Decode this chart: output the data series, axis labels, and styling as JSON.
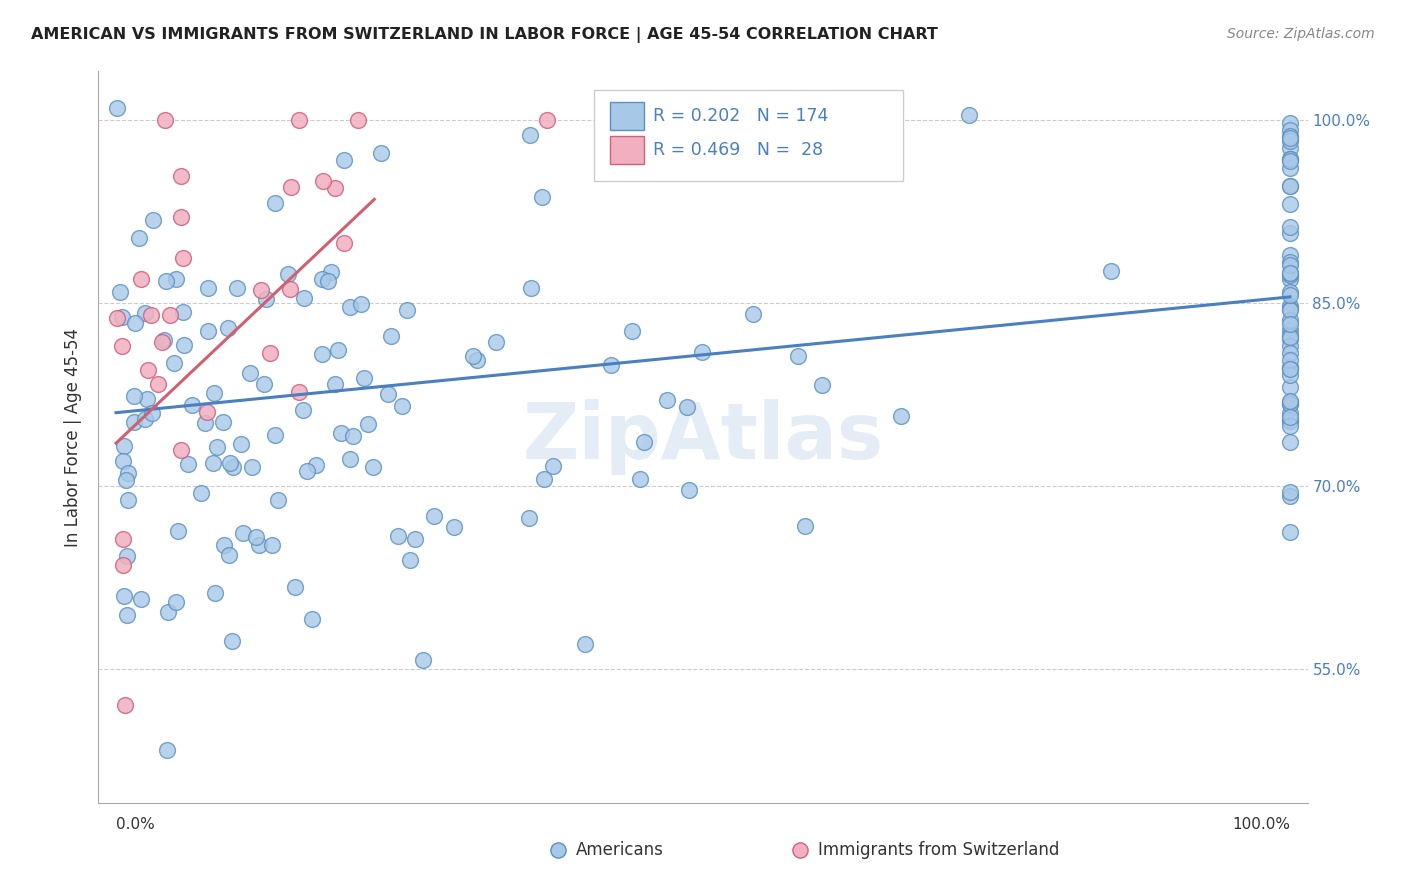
{
  "title": "AMERICAN VS IMMIGRANTS FROM SWITZERLAND IN LABOR FORCE | AGE 45-54 CORRELATION CHART",
  "source": "Source: ZipAtlas.com",
  "ylabel": "In Labor Force | Age 45-54",
  "r_american": 0.202,
  "n_american": 174,
  "r_swiss": 0.469,
  "n_swiss": 28,
  "legend_americans": "Americans",
  "legend_swiss": "Immigrants from Switzerland",
  "xlim": [
    0.0,
    1.0
  ],
  "ylim": [
    0.44,
    1.04
  ],
  "yticks": [
    0.55,
    0.7,
    0.85,
    1.0
  ],
  "color_american_fill": "#a8c8e8",
  "color_american_edge": "#5a8fc0",
  "color_swiss_fill": "#f0b0c0",
  "color_swiss_edge": "#d06080",
  "color_american_line": "#4a7fc0",
  "color_swiss_line": "#d06070",
  "background_color": "#ffffff",
  "grid_color": "#cccccc",
  "title_color": "#222222",
  "source_color": "#888888",
  "axis_label_color": "#333333",
  "tick_color": "#4a7fc0",
  "watermark_color": "#e4edf5",
  "legend_text_color": "#4a7fc0"
}
